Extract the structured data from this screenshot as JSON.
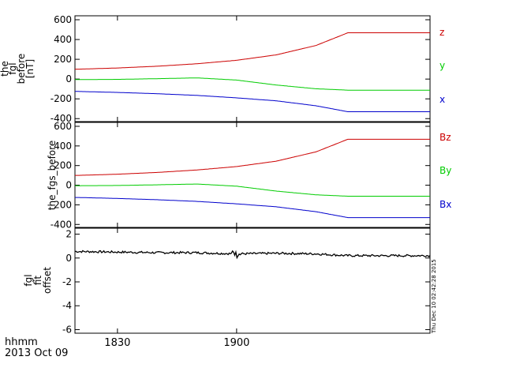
{
  "chart_data": [
    {
      "type": "line",
      "ylabel_lines": [
        "the",
        "fgl",
        "before",
        "[nT]"
      ],
      "ylim": [
        -430,
        640
      ],
      "yticks": [
        600,
        400,
        200,
        0,
        -200,
        -400
      ],
      "x": [
        "18:20",
        "18:30",
        "18:40",
        "18:50",
        "19:00",
        "19:10",
        "19:20",
        "19:28"
      ],
      "series": [
        {
          "name": "z",
          "color": "#cc0000",
          "values": [
            100,
            112,
            130,
            155,
            190,
            245,
            340,
            468
          ]
        },
        {
          "name": "y",
          "color": "#00cc00",
          "values": [
            -5,
            -3,
            4,
            12,
            -10,
            -60,
            -98,
            -112
          ]
        },
        {
          "name": "x",
          "color": "#0000cc",
          "values": [
            -125,
            -135,
            -148,
            -165,
            -190,
            -220,
            -270,
            -330
          ]
        }
      ]
    },
    {
      "type": "line",
      "ylabel_lines": [
        "the_fgs_before"
      ],
      "ylim": [
        -430,
        640
      ],
      "yticks": [
        600,
        400,
        200,
        0,
        -200,
        -400
      ],
      "x": [
        "18:20",
        "18:30",
        "18:40",
        "18:50",
        "19:00",
        "19:10",
        "19:20",
        "19:28"
      ],
      "series": [
        {
          "name": "Bz",
          "color": "#cc0000",
          "values": [
            100,
            112,
            130,
            155,
            190,
            245,
            340,
            468
          ]
        },
        {
          "name": "By",
          "color": "#00cc00",
          "values": [
            -5,
            -3,
            4,
            12,
            -10,
            -60,
            -98,
            -112
          ]
        },
        {
          "name": "Bx",
          "color": "#0000cc",
          "values": [
            -125,
            -135,
            -148,
            -165,
            -190,
            -220,
            -270,
            -330
          ]
        }
      ]
    },
    {
      "type": "line",
      "ylabel_lines": [
        "fgl",
        "fit",
        "offset"
      ],
      "ylim": [
        -6.3,
        2.5
      ],
      "yticks": [
        2,
        0,
        -2,
        -4,
        -6
      ],
      "x": [
        "18:20",
        "18:30",
        "18:40",
        "18:50",
        "19:00",
        "19:10",
        "19:20",
        "19:28"
      ],
      "series": [
        {
          "name": "",
          "color": "#000000",
          "values": [
            0.55,
            0.5,
            0.45,
            0.45,
            0.35,
            0.4,
            0.35,
            0.2
          ]
        }
      ]
    }
  ],
  "time_axis": {
    "range_minutes": [
      -10.7,
      78.7
    ],
    "ticks": [
      {
        "label": "1830",
        "minute": 0
      },
      {
        "label": "1900",
        "minute": 30
      }
    ],
    "caption_top": "hhmm",
    "caption_bottom": "2013 Oct 09"
  },
  "timestamp": "Thu Dec 10 02:42:28 2015"
}
